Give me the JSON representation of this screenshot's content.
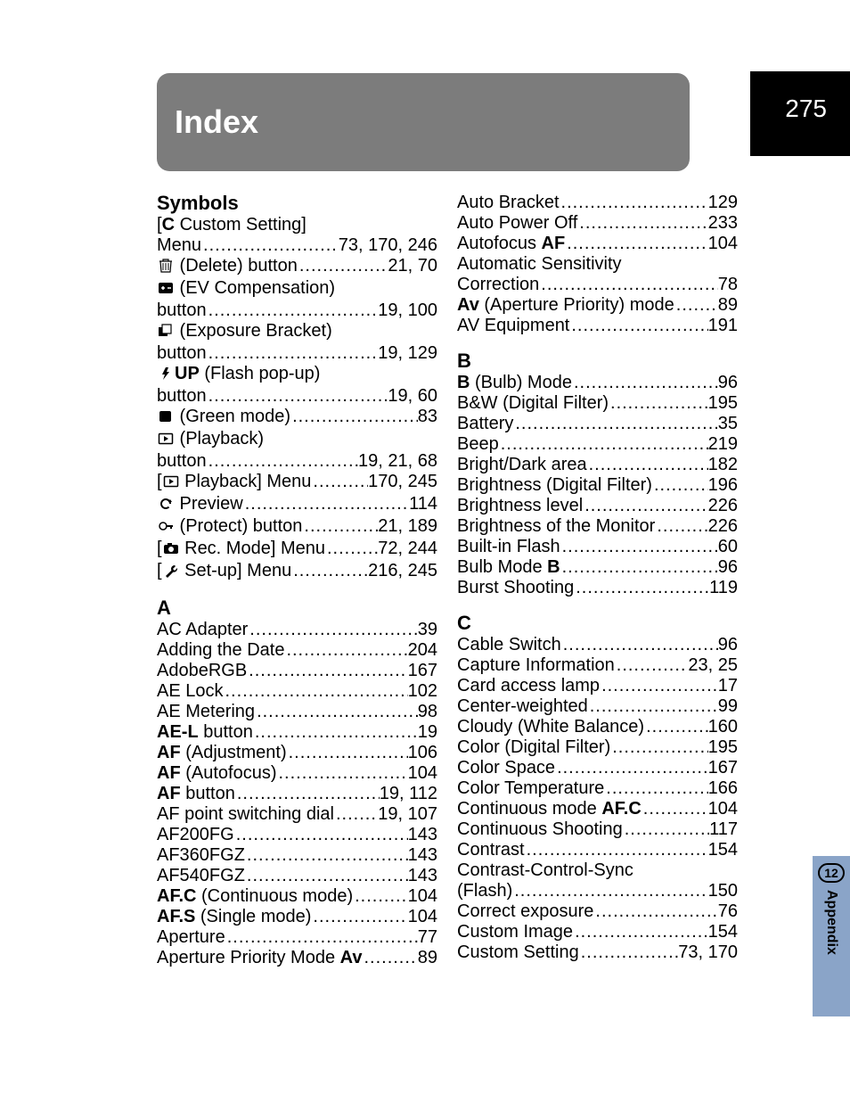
{
  "page_number": "275",
  "side_tab": {
    "badge": "12",
    "label": "Appendix"
  },
  "header": "Index",
  "colors": {
    "page_bg": "#ffffff",
    "header_bg": "#7c7c7c",
    "header_text": "#ffffff",
    "tab_bg": "#000000",
    "tab_text": "#ffffff",
    "side_tab_bg": "#8aa4c8",
    "text": "#000000"
  },
  "leader_dots": "..................................................................................",
  "left_col": [
    {
      "type": "heading",
      "text": "Symbols"
    },
    {
      "type": "plain",
      "term_parts": [
        {
          "t": "[",
          "b": false
        },
        {
          "t": "C",
          "b": true
        },
        {
          "t": " Custom Setting]",
          "b": false
        }
      ]
    },
    {
      "type": "entry",
      "term_parts": [
        {
          "t": "Menu ",
          "b": false
        }
      ],
      "pages": "73, 170, 246"
    },
    {
      "type": "entry",
      "icon": "trash",
      "term_parts": [
        {
          "t": " (Delete) button ",
          "b": false
        }
      ],
      "pages": "21, 70"
    },
    {
      "type": "plain",
      "icon": "evcomp",
      "term_parts": [
        {
          "t": " (EV Compensation)",
          "b": false
        }
      ]
    },
    {
      "type": "entry",
      "term_parts": [
        {
          "t": "button ",
          "b": false
        }
      ],
      "pages": "19, 100"
    },
    {
      "type": "plain",
      "icon": "expbracket",
      "term_parts": [
        {
          "t": " (Exposure Bracket)",
          "b": false
        }
      ]
    },
    {
      "type": "entry",
      "term_parts": [
        {
          "t": "button ",
          "b": false
        }
      ],
      "pages": "19, 129"
    },
    {
      "type": "plain",
      "icon": "flashup",
      "term_parts": [
        {
          "t": "UP",
          "b": true
        },
        {
          "t": " (Flash pop-up)",
          "b": false
        }
      ]
    },
    {
      "type": "entry",
      "term_parts": [
        {
          "t": "button ",
          "b": false
        }
      ],
      "pages": "19, 60"
    },
    {
      "type": "entry",
      "icon": "greensq",
      "term_parts": [
        {
          "t": " (Green mode) ",
          "b": false
        }
      ],
      "pages": "83"
    },
    {
      "type": "plain",
      "icon": "playback",
      "term_parts": [
        {
          "t": " (Playback)",
          "b": false
        }
      ]
    },
    {
      "type": "entry",
      "term_parts": [
        {
          "t": "button ",
          "b": false
        }
      ],
      "pages": "19, 21, 68"
    },
    {
      "type": "entry",
      "term_parts": [
        {
          "t": "[",
          "b": false
        },
        {
          "icon": "playback"
        },
        {
          "t": " Playback] Menu ",
          "b": false
        }
      ],
      "pages": "170, 245"
    },
    {
      "type": "entry",
      "icon": "preview",
      "term_parts": [
        {
          "t": " Preview ",
          "b": false
        }
      ],
      "pages": "114"
    },
    {
      "type": "entry",
      "icon": "protect",
      "term_parts": [
        {
          "t": " (Protect) button ",
          "b": false
        }
      ],
      "pages": "21, 189"
    },
    {
      "type": "entry",
      "term_parts": [
        {
          "t": "[",
          "b": false
        },
        {
          "icon": "camera"
        },
        {
          "t": " Rec. Mode] Menu ",
          "b": false
        }
      ],
      "pages": "72, 244"
    },
    {
      "type": "entry",
      "term_parts": [
        {
          "t": "[",
          "b": false
        },
        {
          "icon": "wrench"
        },
        {
          "t": " Set-up] Menu ",
          "b": false
        }
      ],
      "pages": "216, 245"
    },
    {
      "type": "heading",
      "text": "A"
    },
    {
      "type": "entry",
      "term_parts": [
        {
          "t": "AC Adapter ",
          "b": false
        }
      ],
      "pages": "39"
    },
    {
      "type": "entry",
      "term_parts": [
        {
          "t": "Adding the Date ",
          "b": false
        }
      ],
      "pages": "204"
    },
    {
      "type": "entry",
      "term_parts": [
        {
          "t": "AdobeRGB ",
          "b": false
        }
      ],
      "pages": "167"
    },
    {
      "type": "entry",
      "term_parts": [
        {
          "t": "AE Lock ",
          "b": false
        }
      ],
      "pages": "102"
    },
    {
      "type": "entry",
      "term_parts": [
        {
          "t": "AE Metering ",
          "b": false
        }
      ],
      "pages": "98"
    },
    {
      "type": "entry",
      "term_parts": [
        {
          "t": "AE-L",
          "b": true
        },
        {
          "t": " button ",
          "b": false
        }
      ],
      "pages": " 19"
    },
    {
      "type": "entry",
      "term_parts": [
        {
          "t": "AF",
          "b": true
        },
        {
          "t": " (Adjustment) ",
          "b": false
        }
      ],
      "pages": "106"
    },
    {
      "type": "entry",
      "term_parts": [
        {
          "t": "AF",
          "b": true
        },
        {
          "t": " (Autofocus) ",
          "b": false
        }
      ],
      "pages": "104"
    },
    {
      "type": "entry",
      "term_parts": [
        {
          "t": "AF",
          "b": true
        },
        {
          "t": " button ",
          "b": false
        }
      ],
      "pages": "19, 112"
    },
    {
      "type": "entry",
      "term_parts": [
        {
          "t": "AF point switching dial ",
          "b": false
        }
      ],
      "pages": "19, 107"
    },
    {
      "type": "entry",
      "term_parts": [
        {
          "t": "AF200FG ",
          "b": false
        }
      ],
      "pages": "143"
    },
    {
      "type": "entry",
      "term_parts": [
        {
          "t": "AF360FGZ ",
          "b": false
        }
      ],
      "pages": "143"
    },
    {
      "type": "entry",
      "term_parts": [
        {
          "t": "AF540FGZ ",
          "b": false
        }
      ],
      "pages": "143"
    },
    {
      "type": "entry",
      "term_parts": [
        {
          "t": "AF.C",
          "b": true
        },
        {
          "t": " (Continuous mode) ",
          "b": false
        }
      ],
      "pages": "104"
    },
    {
      "type": "entry",
      "term_parts": [
        {
          "t": "AF.S",
          "b": true
        },
        {
          "t": " (Single mode) ",
          "b": false
        }
      ],
      "pages": "104"
    },
    {
      "type": "entry",
      "term_parts": [
        {
          "t": "Aperture ",
          "b": false
        }
      ],
      "pages": "77"
    },
    {
      "type": "entry",
      "term_parts": [
        {
          "t": "Aperture Priority Mode ",
          "b": false
        },
        {
          "t": "Av",
          "b": true
        },
        {
          "t": " ",
          "b": false
        }
      ],
      "pages": "89"
    }
  ],
  "right_col": [
    {
      "type": "entry",
      "term_parts": [
        {
          "t": "Auto Bracket ",
          "b": false
        }
      ],
      "pages": " 129"
    },
    {
      "type": "entry",
      "term_parts": [
        {
          "t": "Auto Power Off ",
          "b": false
        }
      ],
      "pages": " 233"
    },
    {
      "type": "entry",
      "term_parts": [
        {
          "t": "Autofocus ",
          "b": false
        },
        {
          "t": "AF",
          "b": true
        },
        {
          "t": " ",
          "b": false
        }
      ],
      "pages": " 104"
    },
    {
      "type": "plain",
      "term_parts": [
        {
          "t": "Automatic Sensitivity",
          "b": false
        }
      ]
    },
    {
      "type": "entry",
      "term_parts": [
        {
          "t": "Correction ",
          "b": false
        }
      ],
      "pages": " 78"
    },
    {
      "type": "entry",
      "term_parts": [
        {
          "t": "Av",
          "b": true
        },
        {
          "t": " (Aperture Priority) mode ",
          "b": false
        }
      ],
      "pages": " 89"
    },
    {
      "type": "entry",
      "term_parts": [
        {
          "t": "AV Equipment ",
          "b": false
        }
      ],
      "pages": " 191"
    },
    {
      "type": "heading",
      "text": "B"
    },
    {
      "type": "entry",
      "term_parts": [
        {
          "t": "B",
          "b": true
        },
        {
          "t": " (Bulb) Mode ",
          "b": false
        }
      ],
      "pages": " 96"
    },
    {
      "type": "entry",
      "term_parts": [
        {
          "t": "B&W (Digital Filter) ",
          "b": false
        }
      ],
      "pages": " 195"
    },
    {
      "type": "entry",
      "term_parts": [
        {
          "t": "Battery ",
          "b": false
        }
      ],
      "pages": " 35"
    },
    {
      "type": "entry",
      "term_parts": [
        {
          "t": "Beep ",
          "b": false
        }
      ],
      "pages": " 219"
    },
    {
      "type": "entry",
      "term_parts": [
        {
          "t": "Bright/Dark area ",
          "b": false
        }
      ],
      "pages": " 182"
    },
    {
      "type": "entry",
      "term_parts": [
        {
          "t": "Brightness (Digital Filter) ",
          "b": false
        }
      ],
      "pages": " 196"
    },
    {
      "type": "entry",
      "term_parts": [
        {
          "t": "Brightness level ",
          "b": false
        }
      ],
      "pages": " 226"
    },
    {
      "type": "entry",
      "term_parts": [
        {
          "t": "Brightness of the Monitor ",
          "b": false
        }
      ],
      "pages": " 226"
    },
    {
      "type": "entry",
      "term_parts": [
        {
          "t": "Built-in Flash ",
          "b": false
        }
      ],
      "pages": " 60"
    },
    {
      "type": "entry",
      "term_parts": [
        {
          "t": "Bulb Mode ",
          "b": false
        },
        {
          "t": "B",
          "b": true
        },
        {
          "t": " ",
          "b": false
        }
      ],
      "pages": " 96"
    },
    {
      "type": "entry",
      "term_parts": [
        {
          "t": "Burst Shooting ",
          "b": false
        }
      ],
      "pages": " 119"
    },
    {
      "type": "heading",
      "text": "C"
    },
    {
      "type": "entry",
      "term_parts": [
        {
          "t": "Cable Switch ",
          "b": false
        }
      ],
      "pages": " 96"
    },
    {
      "type": "entry",
      "term_parts": [
        {
          "t": "Capture Information ",
          "b": false
        }
      ],
      "pages": "23, 25"
    },
    {
      "type": "entry",
      "term_parts": [
        {
          "t": "Card access lamp ",
          "b": false
        }
      ],
      "pages": " 17"
    },
    {
      "type": "entry",
      "term_parts": [
        {
          "t": "Center-weighted ",
          "b": false
        }
      ],
      "pages": " 99"
    },
    {
      "type": "entry",
      "term_parts": [
        {
          "t": "Cloudy (White Balance) ",
          "b": false
        }
      ],
      "pages": " 160"
    },
    {
      "type": "entry",
      "term_parts": [
        {
          "t": "Color (Digital Filter) ",
          "b": false
        }
      ],
      "pages": " 195"
    },
    {
      "type": "entry",
      "term_parts": [
        {
          "t": "Color Space ",
          "b": false
        }
      ],
      "pages": " 167"
    },
    {
      "type": "entry",
      "term_parts": [
        {
          "t": "Color Temperature ",
          "b": false
        }
      ],
      "pages": " 166"
    },
    {
      "type": "entry",
      "term_parts": [
        {
          "t": "Continuous mode ",
          "b": false
        },
        {
          "t": "AF.C",
          "b": true
        },
        {
          "t": " ",
          "b": false
        }
      ],
      "pages": " 104"
    },
    {
      "type": "entry",
      "term_parts": [
        {
          "t": "Continuous Shooting ",
          "b": false
        }
      ],
      "pages": " 117"
    },
    {
      "type": "entry",
      "term_parts": [
        {
          "t": "Contrast ",
          "b": false
        }
      ],
      "pages": " 154"
    },
    {
      "type": "plain",
      "term_parts": [
        {
          "t": "Contrast-Control-Sync",
          "b": false
        }
      ]
    },
    {
      "type": "entry",
      "term_parts": [
        {
          "t": "(Flash) ",
          "b": false
        }
      ],
      "pages": " 150"
    },
    {
      "type": "entry",
      "term_parts": [
        {
          "t": "Correct exposure ",
          "b": false
        }
      ],
      "pages": " 76"
    },
    {
      "type": "entry",
      "term_parts": [
        {
          "t": "Custom Image ",
          "b": false
        }
      ],
      "pages": " 154"
    },
    {
      "type": "entry",
      "term_parts": [
        {
          "t": "Custom Setting ",
          "b": false
        }
      ],
      "pages": "73, 170"
    }
  ]
}
